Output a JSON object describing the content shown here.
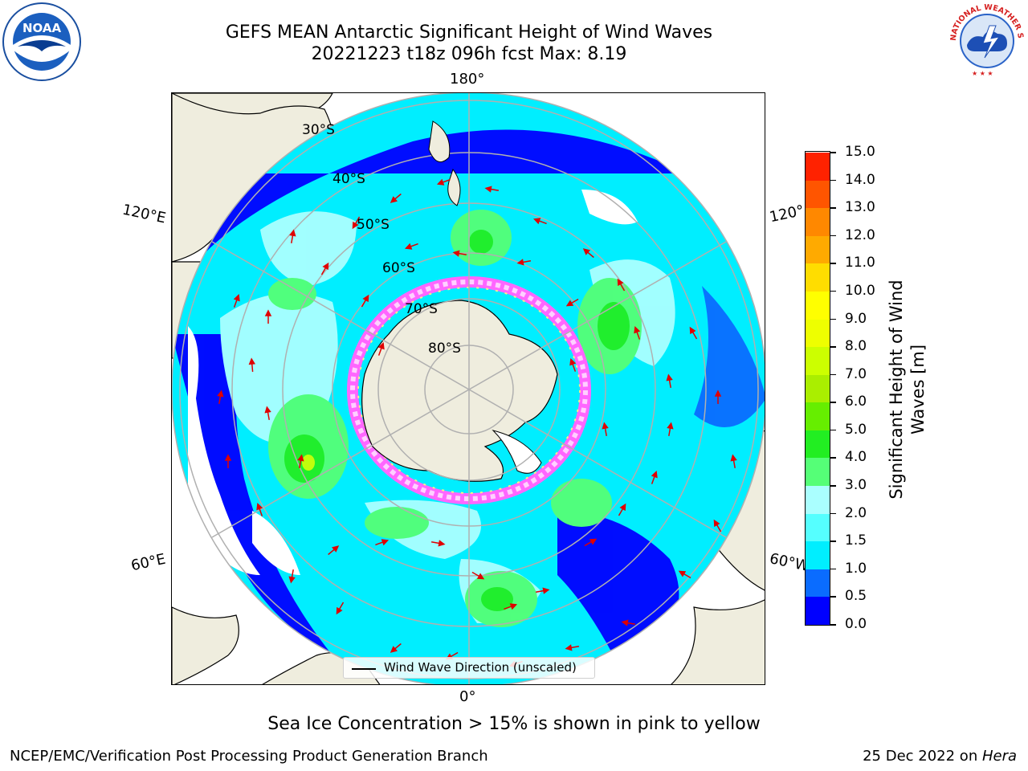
{
  "title_line1": "GEFS MEAN Antarctic Significant Height of Wind Waves",
  "title_line2": "20221223 t18z 096h fcst   Max: 8.19",
  "logos": {
    "left": "noaa-logo",
    "right": "national-weather-service-logo",
    "right_text": "NATIONAL WEATHER SERVICE"
  },
  "map": {
    "lon_labels": {
      "top": "180°",
      "bottom": "0°",
      "left_top": "120°E",
      "left_bottom": "60°E",
      "right_top": "120°",
      "right_bottom": "60°W"
    },
    "lat_labels": [
      "30°S",
      "40°S",
      "50°S",
      "60°S",
      "70°S",
      "80°S"
    ],
    "land_color": "#efedde",
    "ocean_colors": [
      "#0000ff",
      "#0a6cff",
      "#00ffff",
      "#66ffff",
      "#aaffff",
      "#55ff77",
      "#22ee22"
    ],
    "ice_colors": [
      "#ff66ff",
      "#ffd0ff",
      "#ffee88"
    ]
  },
  "legend": {
    "label": "Wind Wave Direction (unscaled)"
  },
  "colorbar": {
    "title_line1": "Significant Height of Wind",
    "title_line2": "Waves [m]",
    "ticks": [
      "0.0",
      "0.5",
      "1.0",
      "1.5",
      "2.0",
      "3.0",
      "4.0",
      "5.0",
      "6.0",
      "7.0",
      "8.0",
      "9.0",
      "10.0",
      "11.0",
      "12.0",
      "13.0",
      "14.0",
      "15.0"
    ],
    "colors": [
      "#0000ff",
      "#0a6cff",
      "#00eeff",
      "#55ffff",
      "#aaffff",
      "#55ff77",
      "#22ee22",
      "#66ee00",
      "#aaee00",
      "#ccff00",
      "#eeff00",
      "#ffff00",
      "#ffdd00",
      "#ffaa00",
      "#ff8800",
      "#ff5500",
      "#ff2200"
    ]
  },
  "caption": "Sea Ice Concentration > 15% is shown in pink to yellow",
  "footer_left": "NCEP/EMC/Verification Post Processing Product Generation Branch",
  "footer_right_prefix": "25 Dec 2022 on ",
  "footer_right_host": "Hera"
}
